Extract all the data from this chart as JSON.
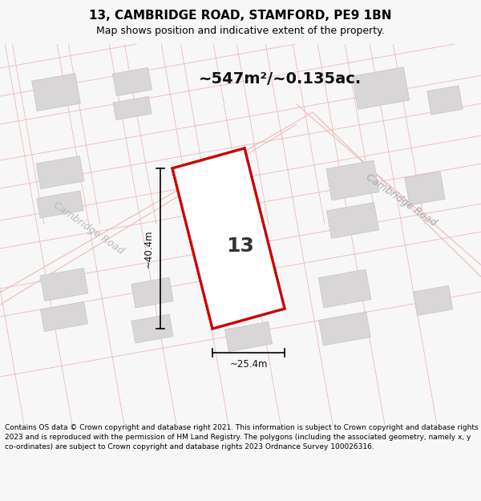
{
  "title": "13, CAMBRIDGE ROAD, STAMFORD, PE9 1BN",
  "subtitle": "Map shows position and indicative extent of the property.",
  "area_text": "~547m²/~0.135ac.",
  "width_label": "~25.4m",
  "height_label": "~40.4m",
  "number_label": "13",
  "cambridge_road_ur": "Cambridge Road",
  "cambridge_road_ll": "Cambridge Road",
  "footer": "Contains OS data © Crown copyright and database right 2021. This information is subject to Crown copyright and database rights 2023 and is reproduced with the permission of HM Land Registry. The polygons (including the associated geometry, namely x, y co-ordinates) are subject to Crown copyright and database rights 2023 Ordnance Survey 100026316.",
  "bg_color": "#f7f7f7",
  "map_bg": "#f7f5f5",
  "plot_fill": "#ffffff",
  "plot_edge": "#cc0000",
  "road_line_color": "#f0b8b8",
  "building_fill": "#d8d6d6",
  "building_edge": "#c8c4c4",
  "title_fontsize": 11,
  "subtitle_fontsize": 9,
  "footer_fontsize": 6.5,
  "area_fontsize": 14,
  "number_fontsize": 18,
  "measure_fontsize": 8.5,
  "road_label_fontsize": 9
}
